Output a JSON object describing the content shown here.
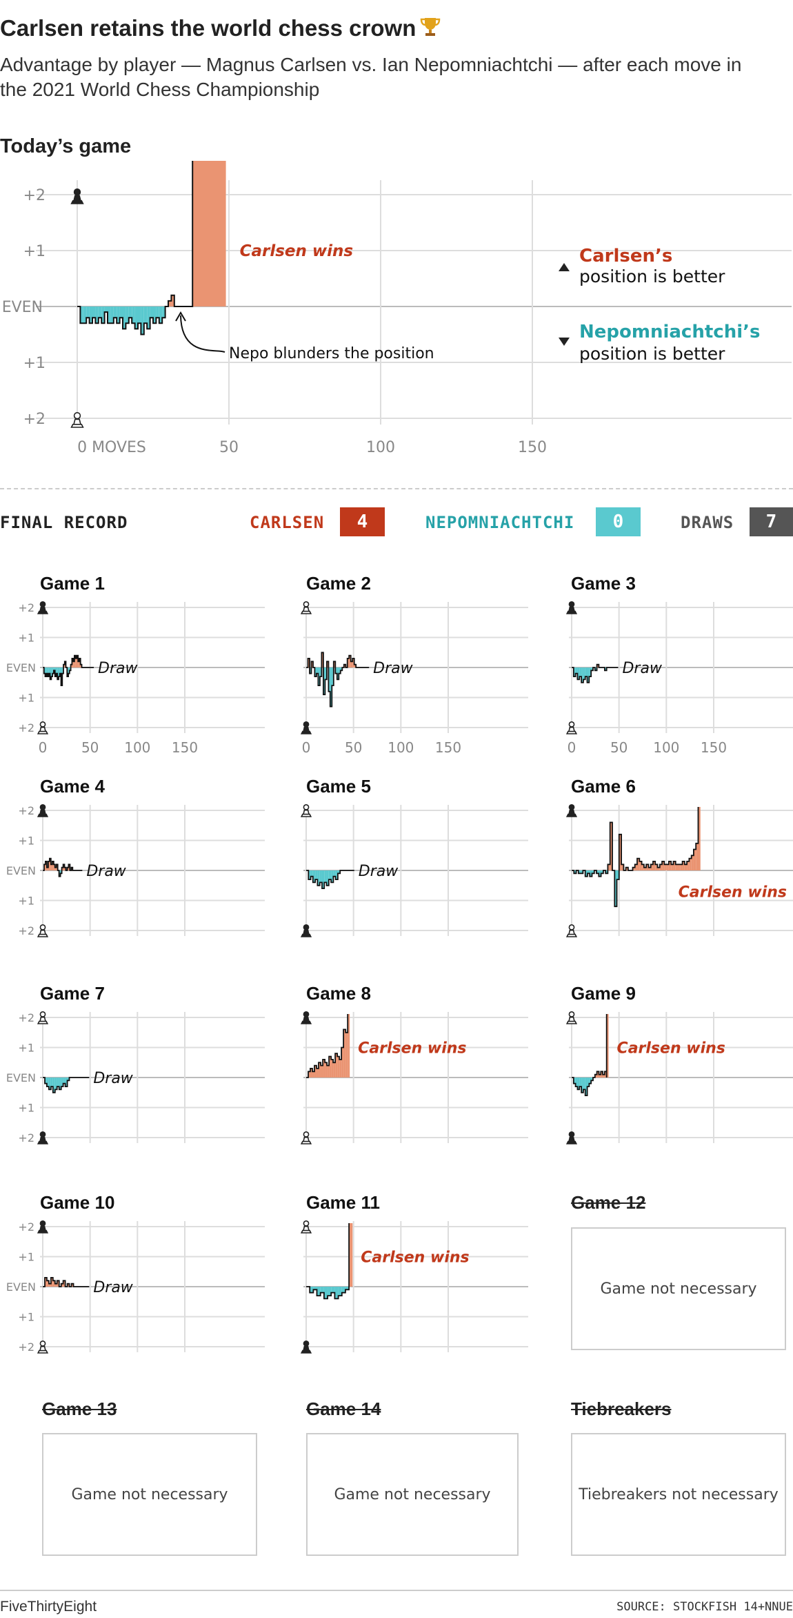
{
  "header": {
    "title": "Carlsen retains the world chess crown",
    "subtitle": "Advantage by player — Magnus Carlsen vs. Ian Nepomniachtchi — after each move in the 2021 World Chess Championship",
    "section_label": "Today’s game"
  },
  "colors": {
    "carlsen": "#ea9472",
    "nepo": "#5ac9cf",
    "carlsen_text": "#c0391b",
    "nepo_text": "#26a2a8",
    "draw_box": "#555555",
    "grid": "#dddddd"
  },
  "legend": {
    "carlsen_name": "Carlsen’s",
    "carlsen_rest": "position is better",
    "nepo_name": "Nepomniachtchi’s",
    "nepo_rest": "position is better"
  },
  "annotation": "Nepo blunders the position",
  "record": {
    "label": "FINAL RECORD",
    "carlsen_label": "CARLSEN",
    "carlsen_value": "4",
    "nepo_label": "NEPOMNIACHTCHI",
    "nepo_value": "0",
    "draws_label": "DRAWS",
    "draws_value": "7"
  },
  "chart_data": {
    "type": "area",
    "ylim": [
      -2,
      2
    ],
    "y_ticks": [
      "+2",
      "+1",
      "EVEN",
      "+1",
      "+2"
    ],
    "main": {
      "xlim": [
        0,
        160
      ],
      "x_ticks": [
        0,
        50,
        100,
        150
      ],
      "x_tick_labels": [
        "0 MOVES",
        "50",
        "100",
        "150"
      ],
      "moves": 49,
      "result_label": "Carlsen wins",
      "values": [
        0,
        -0.3,
        -0.3,
        -0.2,
        -0.3,
        -0.2,
        -0.3,
        -0.2,
        -0.3,
        -0.1,
        -0.3,
        -0.3,
        -0.2,
        -0.3,
        -0.2,
        -0.4,
        -0.3,
        -0.2,
        -0.3,
        -0.4,
        -0.3,
        -0.5,
        -0.3,
        -0.4,
        -0.2,
        -0.3,
        -0.2,
        -0.3,
        -0.2,
        0.0,
        0.1,
        0.2,
        0.0,
        0.0,
        0.0,
        0.0,
        0.0,
        0.0,
        2.6
      ]
    },
    "games": [
      {
        "title": "Game 1",
        "result": "Draw",
        "moves": 45,
        "carlsen_white": false,
        "values": [
          0,
          -0.2,
          -0.3,
          -0.2,
          -0.3,
          -0.2,
          -0.4,
          -0.3,
          -0.2,
          -0.1,
          -0.3,
          -0.2,
          -0.4,
          -0.3,
          -0.2,
          -0.6,
          -0.2,
          0.1,
          0.2,
          0.0,
          -0.3,
          -0.2,
          -0.1,
          0.1,
          0.3,
          0.2,
          0.4,
          0.3,
          0.4,
          0.2,
          0.3,
          0.1,
          0.0,
          0.0,
          0.0
        ]
      },
      {
        "title": "Game 2",
        "result": "Draw",
        "moves": 58,
        "carlsen_white": true,
        "values": [
          0,
          0.3,
          -0.2,
          0.2,
          0.0,
          -0.3,
          -0.2,
          -0.6,
          -0.3,
          0.5,
          -0.9,
          -0.4,
          0.2,
          -0.8,
          -1.3,
          -0.6,
          0.2,
          -0.2,
          -0.4,
          -0.2,
          -0.1,
          0.0,
          0.1,
          0.0,
          0.3,
          0.4,
          0.2,
          0.3,
          0.1,
          0.0,
          0.0,
          0.0
        ]
      },
      {
        "title": "Game 3",
        "result": "Draw",
        "moves": 41,
        "carlsen_white": false,
        "values": [
          0,
          -0.3,
          -0.2,
          -0.4,
          -0.3,
          -0.5,
          -0.4,
          -0.3,
          -0.5,
          -0.3,
          -0.1,
          0.0,
          -0.1,
          0.1,
          0.0,
          0.0,
          0.0,
          -0.1,
          0.0,
          0.0
        ]
      },
      {
        "title": "Game 4",
        "result": "Draw",
        "moves": 33,
        "carlsen_white": false,
        "values": [
          0,
          0.2,
          0.3,
          0.1,
          0.3,
          0.4,
          0.2,
          0.3,
          0.2,
          0.1,
          0.2,
          0.0,
          -0.2,
          -0.1,
          0.1,
          0.2,
          0.1,
          0.0,
          0.1,
          0.2,
          0.0,
          0.1,
          0.0
        ]
      },
      {
        "title": "Game 5",
        "result": "Draw",
        "moves": 43,
        "carlsen_white": true,
        "values": [
          0,
          -0.3,
          -0.2,
          -0.4,
          -0.3,
          -0.5,
          -0.4,
          -0.6,
          -0.4,
          -0.5,
          -0.3,
          -0.4,
          -0.2,
          -0.3,
          -0.1,
          0.0,
          0.0,
          0.0
        ]
      },
      {
        "title": "Game 6",
        "result": "Carlsen wins",
        "moves": 136,
        "carlsen_white": false,
        "values": [
          0,
          -0.1,
          0.0,
          -0.1,
          -0.1,
          0.0,
          -0.2,
          -0.1,
          -0.2,
          -0.1,
          0.0,
          -0.1,
          -0.2,
          -0.1,
          0.0,
          -0.1,
          0.2,
          1.6,
          0.0,
          -1.2,
          -0.3,
          1.2,
          0.2,
          0.0,
          0.1,
          0.0,
          0.0,
          0.1,
          0.2,
          0.4,
          0.3,
          0.2,
          0.1,
          0.2,
          0.1,
          0.2,
          0.3,
          0.2,
          0.1,
          0.2,
          0.3,
          0.2,
          0.2,
          0.3,
          0.2,
          0.3,
          0.2,
          0.2,
          0.2,
          0.3,
          0.2,
          0.3,
          0.4,
          0.5,
          0.7,
          0.9,
          1.4,
          2.8
        ]
      },
      {
        "title": "Game 7",
        "result": "Draw",
        "moves": 41,
        "carlsen_white": true,
        "values": [
          0,
          -0.2,
          -0.3,
          -0.4,
          -0.3,
          -0.5,
          -0.4,
          -0.3,
          -0.4,
          -0.3,
          -0.2,
          -0.3,
          -0.1,
          0.0,
          0.0,
          0.0,
          0.0,
          0.0,
          0.0
        ]
      },
      {
        "title": "Game 8",
        "result": "Carlsen wins",
        "moves": 46,
        "carlsen_white": false,
        "values": [
          0,
          0.2,
          0.3,
          0.2,
          0.4,
          0.3,
          0.5,
          0.4,
          0.6,
          0.5,
          0.4,
          0.7,
          0.6,
          0.5,
          0.8,
          0.7,
          0.6,
          1.0,
          1.6,
          1.5,
          2.0,
          2.6
        ]
      },
      {
        "title": "Game 9",
        "result": "Carlsen wins",
        "moves": 39,
        "carlsen_white": true,
        "values": [
          0,
          -0.2,
          -0.3,
          -0.4,
          -0.3,
          -0.5,
          -0.4,
          -0.6,
          -0.3,
          -0.2,
          -0.1,
          0.0,
          0.1,
          0.2,
          0.1,
          0.2,
          0.1,
          0.2,
          0.0,
          2.6
        ]
      },
      {
        "title": "Game 10",
        "result": "Draw",
        "moves": 41,
        "carlsen_white": false,
        "values": [
          0,
          0.3,
          0.2,
          0.1,
          0.3,
          0.2,
          0.1,
          0.2,
          0.0,
          0.1,
          0.2,
          0.0,
          0.1,
          0.0,
          0.1,
          0.0,
          0.0,
          0.0,
          0.0
        ]
      },
      {
        "title": "Game 11",
        "result": "Carlsen wins",
        "moves": 49,
        "carlsen_white": true,
        "values": [
          0,
          -0.2,
          -0.1,
          -0.3,
          -0.2,
          -0.4,
          -0.3,
          -0.2,
          -0.4,
          -0.3,
          -0.2,
          -0.1,
          0.0,
          2.6
        ]
      }
    ]
  },
  "unplayed": [
    {
      "title": "Game 12",
      "message": "Game not necessary"
    },
    {
      "title": "Game 13",
      "message": "Game not necessary"
    },
    {
      "title": "Game 14",
      "message": "Game not necessary"
    },
    {
      "title": "Tiebreakers",
      "message": "Tiebreakers not necessary"
    }
  ],
  "footer": {
    "brand": "FiveThirtyEight",
    "source": "SOURCE: STOCKFISH 14+NNUE"
  }
}
